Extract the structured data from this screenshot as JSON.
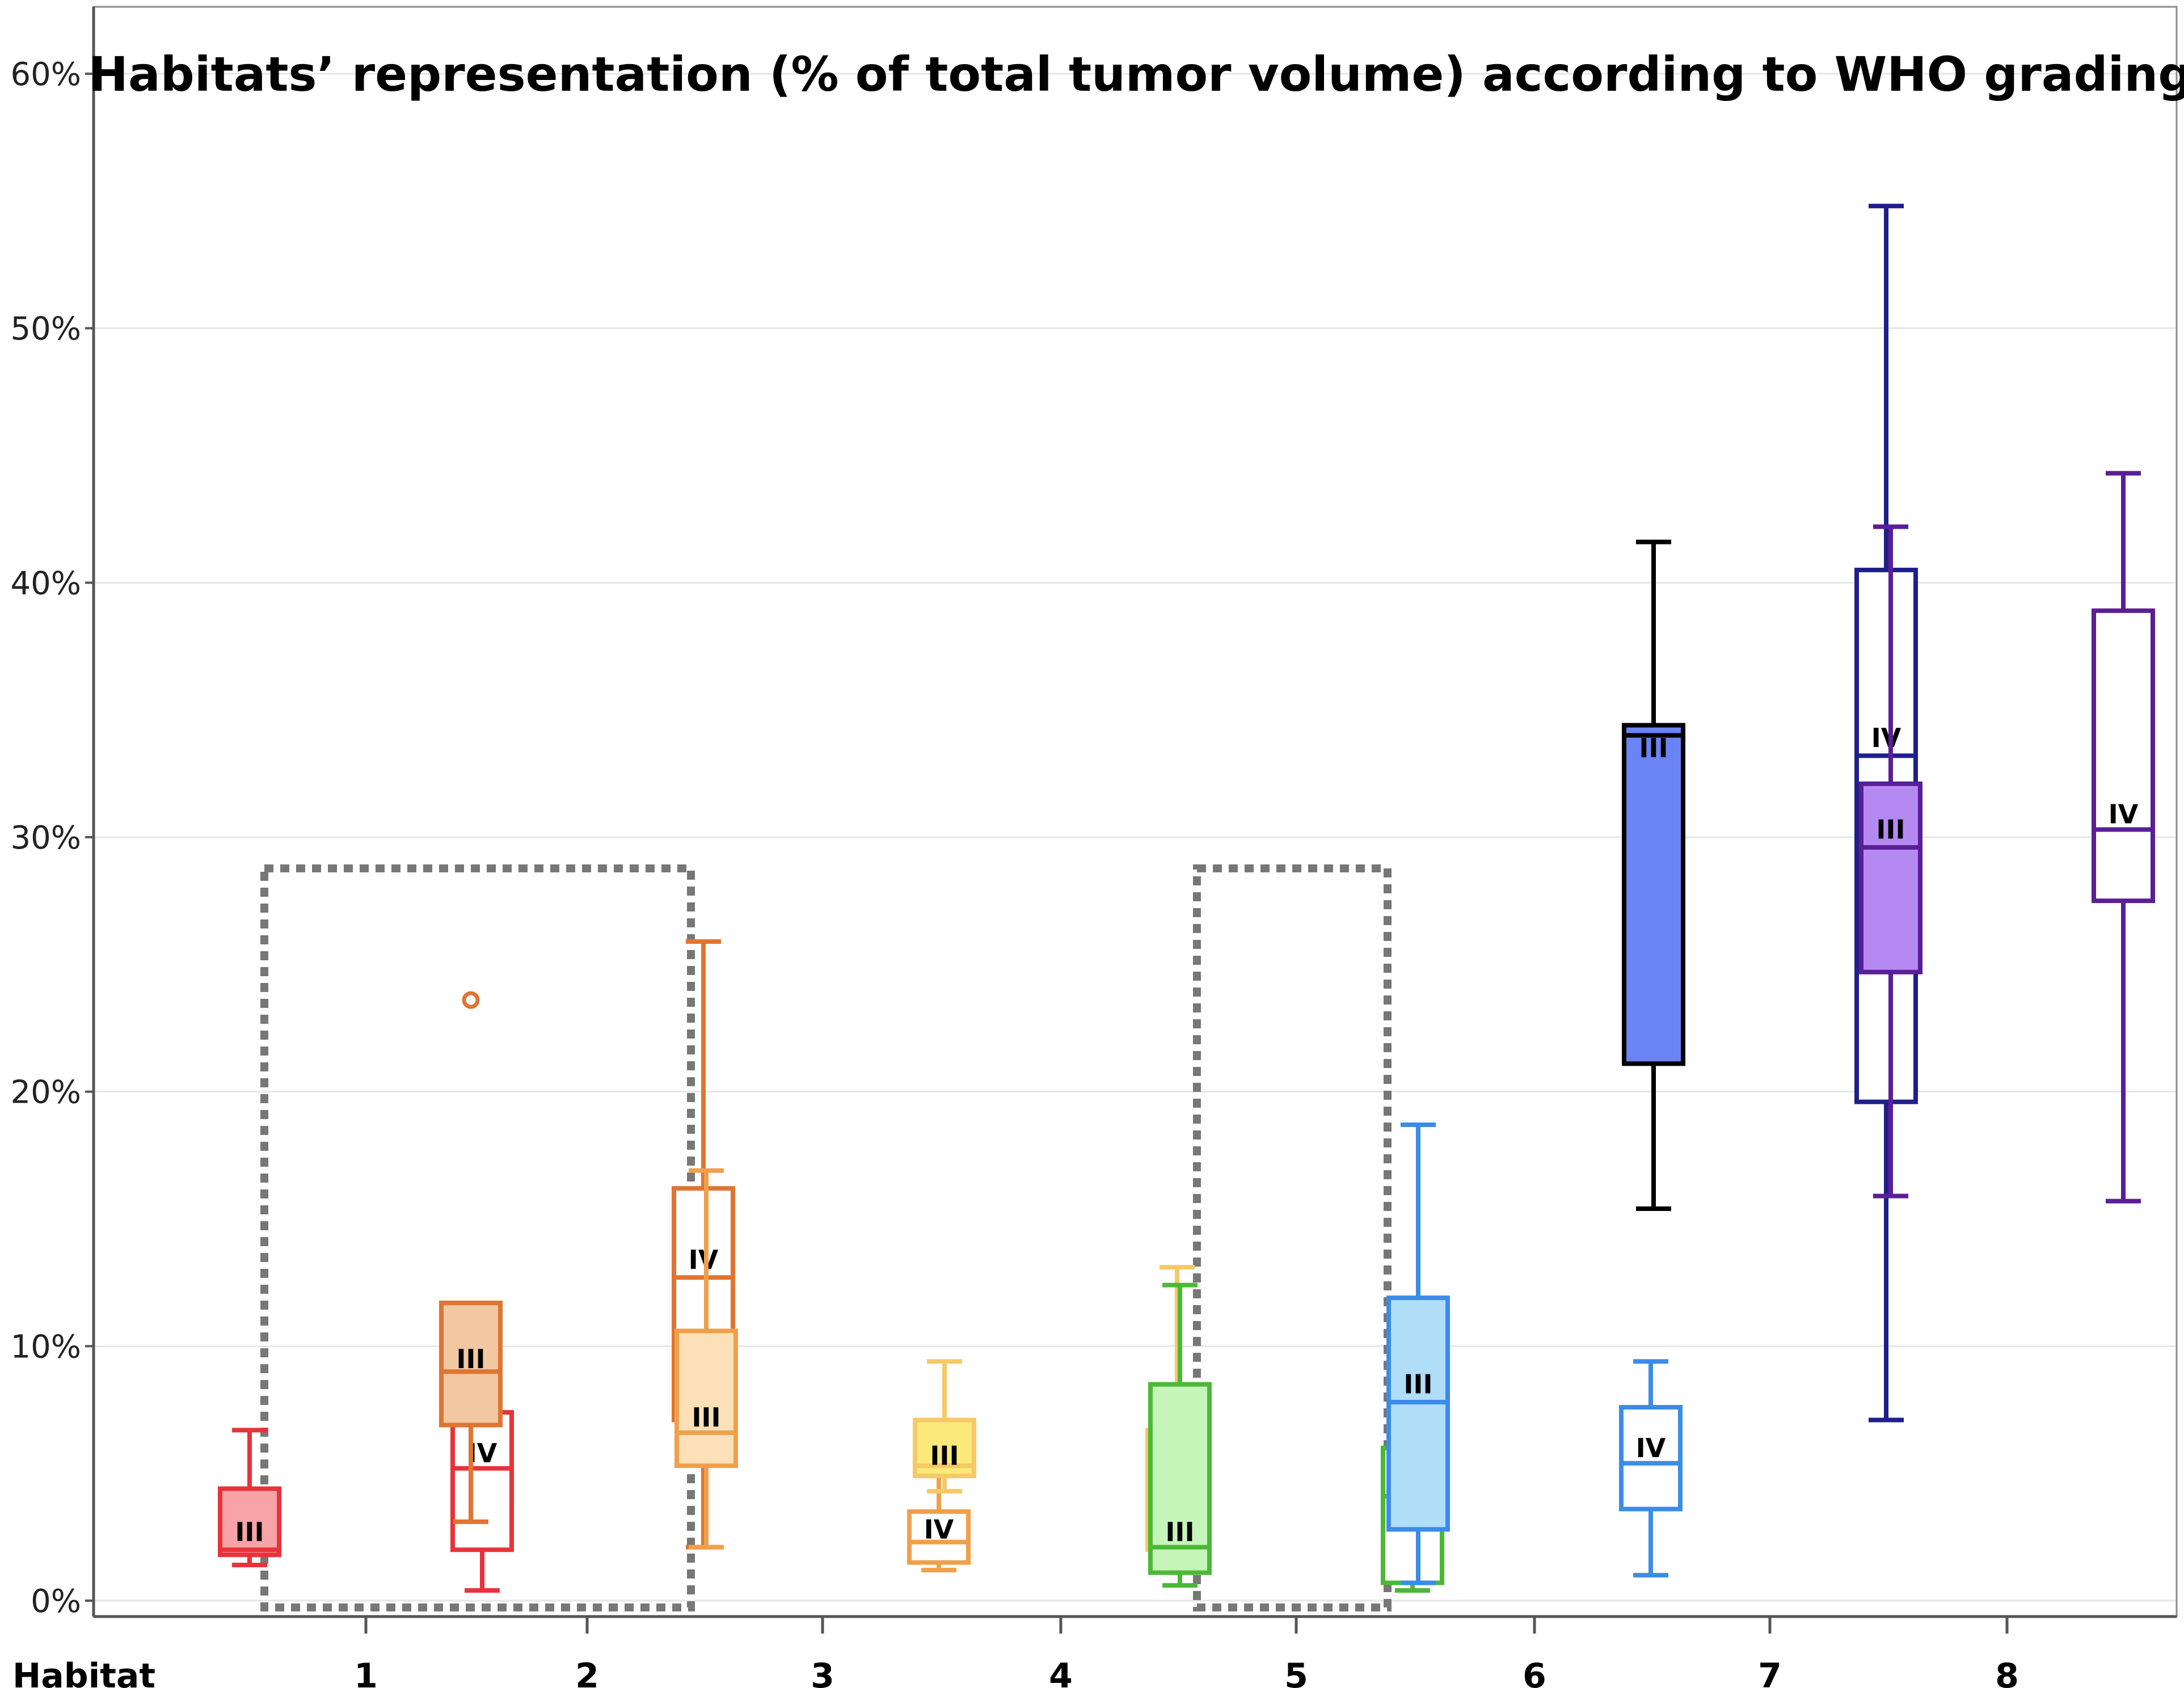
{
  "chart_data": {
    "type": "boxplot",
    "title": "Habitats’ representation (% of total tumor volume) according to WHO grading",
    "xlabel": "Habitat",
    "ylabel": "",
    "ylim": [
      0,
      60
    ],
    "y_ticks": [
      0,
      10,
      20,
      30,
      40,
      50,
      60
    ],
    "y_tick_labels": [
      "0%",
      "10%",
      "20%",
      "30%",
      "40%",
      "50%",
      "60%"
    ],
    "grid": true,
    "categories": [
      "1",
      "2",
      "3",
      "4",
      "5",
      "6",
      "7",
      "8"
    ],
    "grades": [
      "III",
      "IV"
    ],
    "highlighted_habitats": [
      "1",
      "2",
      "5"
    ],
    "colors": {
      "h1": "#e8333a",
      "h1_fill": "#f7a3a7",
      "h2": "#e07431",
      "h2_fill": "#f2c8a3",
      "h3": "#f0a04a",
      "h3_fill": "#fbe0b8",
      "h4": "#f5c966",
      "h4_fill": "#fbe97a",
      "h5": "#4cb838",
      "h5_fill": "#c5f5b8",
      "h6": "#3b8ce8",
      "h6_fill": "#b0ddf8",
      "h7_III": "#000000",
      "h7_III_fill": "#6a84f5",
      "h7_IV": "#1e1f8a",
      "h8": "#5a1e96",
      "h8_fill": "#b589f2",
      "grid": "#e6e6e6",
      "axis": "#555555",
      "dotted_box": "#777777"
    },
    "series": [
      {
        "habitat": "1",
        "grade": "III",
        "whisker_low": 1.4,
        "q1": 1.8,
        "median": 2.0,
        "q3": 4.4,
        "whisker_high": 6.7,
        "outliers": [],
        "label_y": 2.7
      },
      {
        "habitat": "1",
        "grade": "IV",
        "whisker_low": 0.4,
        "q1": 2.0,
        "median": 5.2,
        "q3": 7.4,
        "whisker_high": 11.2,
        "outliers": [],
        "label_y": 5.8
      },
      {
        "habitat": "2",
        "grade": "III",
        "whisker_low": 3.1,
        "q1": 6.9,
        "median": 9.0,
        "q3": 11.7,
        "whisker_high": 11.7,
        "outliers": [
          23.6
        ],
        "label_y": 9.5
      },
      {
        "habitat": "2",
        "grade": "IV",
        "whisker_low": 2.1,
        "q1": 7.1,
        "median": 12.7,
        "q3": 16.2,
        "whisker_high": 25.9,
        "outliers": [],
        "label_y": 13.4
      },
      {
        "habitat": "3",
        "grade": "III",
        "whisker_low": 2.1,
        "q1": 5.3,
        "median": 6.6,
        "q3": 10.6,
        "whisker_high": 16.9,
        "outliers": [],
        "label_y": 7.2
      },
      {
        "habitat": "3",
        "grade": "IV",
        "whisker_low": 1.2,
        "q1": 1.5,
        "median": 2.3,
        "q3": 3.5,
        "whisker_high": 4.9,
        "outliers": [],
        "label_y": 2.8
      },
      {
        "habitat": "4",
        "grade": "III",
        "whisker_low": 4.3,
        "q1": 4.9,
        "median": 5.3,
        "q3": 7.1,
        "whisker_high": 9.4,
        "outliers": [],
        "label_y": 5.7
      },
      {
        "habitat": "4",
        "grade": "IV",
        "whisker_low": 1.5,
        "q1": 2.0,
        "median": 3.0,
        "q3": 6.7,
        "whisker_high": 13.1,
        "outliers": [],
        "label_y": 3.5
      },
      {
        "habitat": "5",
        "grade": "III",
        "whisker_low": 0.6,
        "q1": 1.1,
        "median": 2.1,
        "q3": 8.5,
        "whisker_high": 12.4,
        "outliers": [],
        "label_y": 2.7
      },
      {
        "habitat": "5",
        "grade": "IV",
        "whisker_low": 0.4,
        "q1": 0.7,
        "median": 4.1,
        "q3": 6.0,
        "whisker_high": 10.5,
        "outliers": [],
        "label_y": 4.8
      },
      {
        "habitat": "6",
        "grade": "III",
        "whisker_low": 0.7,
        "q1": 2.8,
        "median": 7.8,
        "q3": 11.9,
        "whisker_high": 18.7,
        "outliers": [],
        "label_y": 8.5
      },
      {
        "habitat": "6",
        "grade": "IV",
        "whisker_low": 1.0,
        "q1": 3.6,
        "median": 5.4,
        "q3": 7.6,
        "whisker_high": 9.4,
        "outliers": [],
        "label_y": 6.0
      },
      {
        "habitat": "7",
        "grade": "III",
        "whisker_low": 15.4,
        "q1": 21.1,
        "median": 34.0,
        "q3": 34.4,
        "whisker_high": 41.6,
        "outliers": [],
        "label_y": 33.5
      },
      {
        "habitat": "7",
        "grade": "IV",
        "whisker_low": 7.1,
        "q1": 19.6,
        "median": 33.2,
        "q3": 40.5,
        "whisker_high": 54.8,
        "outliers": [],
        "label_y": 33.9
      },
      {
        "habitat": "8",
        "grade": "III",
        "whisker_low": 15.9,
        "q1": 24.7,
        "median": 29.6,
        "q3": 32.1,
        "whisker_high": 42.2,
        "outliers": [],
        "label_y": 30.3
      },
      {
        "habitat": "8",
        "grade": "IV",
        "whisker_low": 15.7,
        "q1": 27.5,
        "median": 30.3,
        "q3": 38.9,
        "whisker_high": 44.3,
        "outliers": [],
        "label_y": 30.9
      }
    ]
  }
}
